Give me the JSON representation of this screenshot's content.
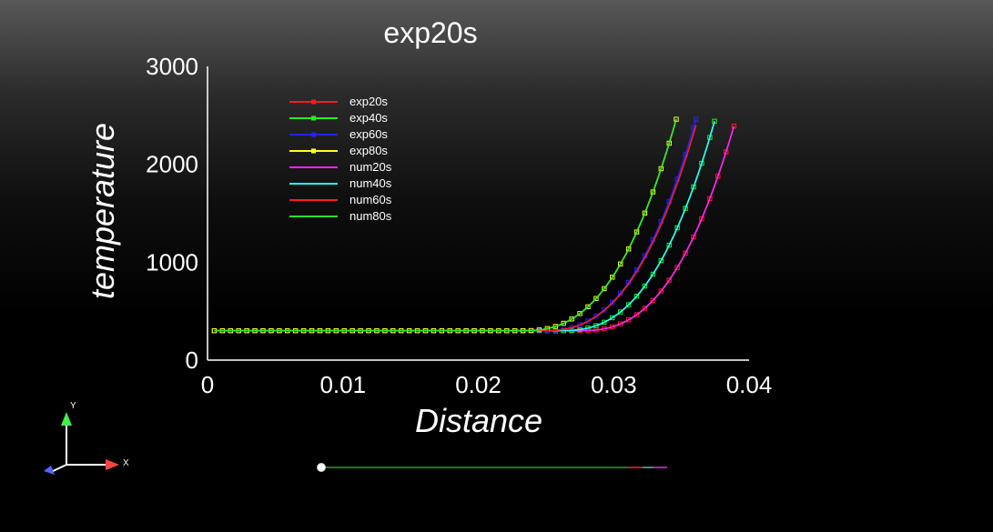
{
  "chart_data": {
    "type": "line",
    "title": "exp20s",
    "xlabel": "Distance",
    "ylabel": "temperature",
    "xlim": [
      0,
      0.04
    ],
    "ylim": [
      0,
      3000
    ],
    "x_ticks": [
      0,
      0.01,
      0.02,
      0.03,
      0.04
    ],
    "x_tick_labels": [
      "0",
      "0.01",
      "0.02",
      "0.03",
      "0.04"
    ],
    "y_ticks": [
      0,
      1000,
      2000,
      3000
    ],
    "y_tick_labels": [
      "0",
      "1000",
      "2000",
      "3000"
    ],
    "grid": false,
    "legend_position": "top-left",
    "series": [
      {
        "name": "exp20s",
        "color": "#ff1a1a",
        "markers": true,
        "front": 0.03888,
        "tmax": 2390
      },
      {
        "name": "exp40s",
        "color": "#22ee22",
        "markers": true,
        "front": 0.03745,
        "tmax": 2440
      },
      {
        "name": "exp60s",
        "color": "#2222ff",
        "markers": true,
        "front": 0.03608,
        "tmax": 2460
      },
      {
        "name": "exp80s",
        "color": "#ffff22",
        "markers": true,
        "front": 0.03462,
        "tmax": 2460
      },
      {
        "name": "num20s",
        "color": "#ff22ff",
        "markers": false,
        "front": 0.03888,
        "tmax": 2390
      },
      {
        "name": "num40s",
        "color": "#22ffff",
        "markers": false,
        "front": 0.03745,
        "tmax": 2440
      },
      {
        "name": "num60s",
        "color": "#ff1a1a",
        "markers": false,
        "front": 0.03608,
        "tmax": 2400
      },
      {
        "name": "num80s",
        "color": "#22ee22",
        "markers": false,
        "front": 0.03462,
        "tmax": 2460
      }
    ],
    "baseline": 300
  },
  "axes_triad": {
    "y_label": "Y",
    "x_label": "X"
  },
  "time_slider": {
    "value": 0.0
  }
}
